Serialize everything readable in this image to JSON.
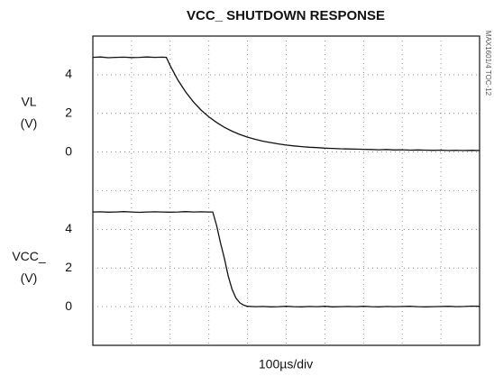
{
  "chart_data": [
    {
      "type": "line",
      "title": "VCC_ SHUTDOWN RESPONSE",
      "annotation": "MAX1601/4 TOC-12",
      "ylabel": [
        "VL",
        "(V)"
      ],
      "xlim": [
        0,
        1000
      ],
      "ylim": [
        -2,
        6
      ],
      "yticks": [
        0,
        2,
        4
      ],
      "grid": true,
      "series": [
        {
          "name": "VL",
          "color": "#111111",
          "x": [
            0,
            20,
            40,
            60,
            80,
            100,
            120,
            140,
            160,
            180,
            190,
            200,
            220,
            240,
            260,
            280,
            300,
            320,
            340,
            360,
            380,
            400,
            420,
            440,
            460,
            480,
            500,
            520,
            540,
            560,
            580,
            600,
            620,
            640,
            660,
            680,
            700,
            720,
            740,
            760,
            780,
            800,
            820,
            840,
            860,
            880,
            900,
            920,
            940,
            960,
            980,
            1000
          ],
          "values": [
            4.9,
            4.92,
            4.88,
            4.9,
            4.91,
            4.89,
            4.9,
            4.92,
            4.9,
            4.91,
            4.9,
            4.47,
            3.72,
            3.11,
            2.6,
            2.17,
            1.82,
            1.53,
            1.28,
            1.08,
            0.91,
            0.77,
            0.66,
            0.56,
            0.49,
            0.42,
            0.36,
            0.32,
            0.28,
            0.25,
            0.23,
            0.2,
            0.19,
            0.17,
            0.16,
            0.15,
            0.14,
            0.13,
            0.12,
            0.13,
            0.11,
            0.12,
            0.1,
            0.11,
            0.1,
            0.09,
            0.1,
            0.08,
            0.09,
            0.08,
            0.09,
            0.08
          ]
        }
      ]
    },
    {
      "type": "line",
      "ylabel": [
        "VCC_",
        "(V)"
      ],
      "xlabel": "100µs/div",
      "xlim": [
        0,
        1000
      ],
      "ylim": [
        -2,
        6
      ],
      "yticks": [
        0,
        2,
        4
      ],
      "grid": true,
      "series": [
        {
          "name": "VCC_",
          "color": "#111111",
          "x": [
            0,
            20,
            40,
            60,
            80,
            100,
            120,
            140,
            160,
            180,
            200,
            220,
            240,
            260,
            280,
            300,
            310,
            320,
            330,
            340,
            350,
            360,
            370,
            380,
            390,
            400,
            420,
            440,
            460,
            480,
            500,
            520,
            540,
            560,
            580,
            600,
            620,
            640,
            660,
            680,
            700,
            720,
            740,
            760,
            780,
            800,
            820,
            840,
            860,
            880,
            900,
            920,
            940,
            960,
            980,
            1000
          ],
          "values": [
            4.9,
            4.91,
            4.89,
            4.9,
            4.92,
            4.9,
            4.88,
            4.9,
            4.91,
            4.9,
            4.89,
            4.9,
            4.92,
            4.9,
            4.91,
            4.9,
            4.9,
            4.2,
            3.3,
            2.5,
            1.6,
            0.9,
            0.45,
            0.2,
            0.08,
            0.02,
            0,
            0.01,
            -0.01,
            0,
            0.02,
            0,
            -0.01,
            0.01,
            0,
            0.02,
            -0.01,
            0,
            0.01,
            0,
            0.02,
            0,
            -0.01,
            0.01,
            0,
            0.01,
            0.02,
            0,
            -0.01,
            0,
            0.01,
            0.02,
            0,
            0.01,
            0.03,
            0.02
          ]
        }
      ]
    }
  ]
}
